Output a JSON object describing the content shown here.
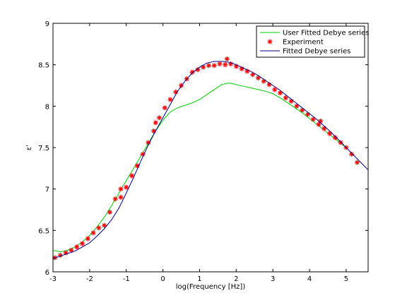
{
  "chart_data": {
    "type": "line",
    "title": "",
    "xlabel": "log(Frequency [Hz])",
    "ylabel": "ε'",
    "xlim": [
      -3,
      5.6
    ],
    "ylim": [
      6,
      9
    ],
    "xticks": [
      -3,
      -2,
      -1,
      0,
      1,
      2,
      3,
      4,
      5
    ],
    "yticks": [
      6,
      6.5,
      7,
      7.5,
      8,
      8.5,
      9
    ],
    "xtick_labels": [
      "-3",
      "-2",
      "-1",
      "0",
      "1",
      "2",
      "3",
      "4",
      "5"
    ],
    "ytick_labels": [
      "6",
      "6.5",
      "7",
      "7.5",
      "8",
      "8.5",
      "9"
    ],
    "grid": false,
    "legend_position": "top-right",
    "series": [
      {
        "name": "User Fitted Debye series",
        "kind": "line",
        "color": "#00cc00",
        "x": [
          -3.0,
          -2.8,
          -2.6,
          -2.4,
          -2.2,
          -2.0,
          -1.8,
          -1.6,
          -1.4,
          -1.2,
          -1.0,
          -0.8,
          -0.6,
          -0.4,
          -0.2,
          0.0,
          0.2,
          0.4,
          0.6,
          0.8,
          1.0,
          1.2,
          1.4,
          1.6,
          1.8,
          2.0,
          2.2,
          2.4,
          2.6,
          2.8,
          3.0,
          3.2,
          3.4,
          3.6,
          3.8,
          4.0,
          4.2,
          4.4,
          4.6,
          4.8,
          5.0
        ],
        "y": [
          6.26,
          6.24,
          6.26,
          6.3,
          6.36,
          6.44,
          6.54,
          6.66,
          6.8,
          6.95,
          7.1,
          7.25,
          7.4,
          7.55,
          7.7,
          7.83,
          7.93,
          7.98,
          8.01,
          8.04,
          8.08,
          8.14,
          8.2,
          8.26,
          8.28,
          8.26,
          8.24,
          8.22,
          8.2,
          8.18,
          8.15,
          8.1,
          8.04,
          7.98,
          7.92,
          7.85,
          7.78,
          7.71,
          7.64,
          7.57,
          7.5
        ]
      },
      {
        "name": "Experiment",
        "kind": "markers",
        "color": "#ff0000",
        "x": [
          -2.95,
          -2.8,
          -2.65,
          -2.5,
          -2.35,
          -2.2,
          -2.05,
          -1.9,
          -1.75,
          -1.6,
          -1.45,
          -1.3,
          -1.15,
          -1.0,
          -0.85,
          -0.7,
          -0.55,
          -0.4,
          -0.25,
          -0.1,
          0.05,
          0.2,
          0.35,
          0.5,
          0.65,
          0.8,
          0.95,
          1.1,
          1.25,
          1.4,
          1.55,
          1.7,
          1.85,
          2.0,
          2.15,
          2.3,
          2.45,
          2.6,
          2.75,
          2.9,
          3.05,
          3.2,
          3.35,
          3.5,
          3.65,
          3.8,
          3.95,
          4.1,
          4.25,
          4.4,
          4.55,
          4.7,
          4.85,
          5.0,
          5.15,
          5.3,
          -0.2,
          -1.15,
          1.75,
          4.3
        ],
        "y": [
          6.17,
          6.2,
          6.23,
          6.26,
          6.3,
          6.34,
          6.4,
          6.47,
          6.53,
          6.56,
          6.72,
          6.88,
          6.9,
          7.02,
          7.16,
          7.28,
          7.42,
          7.56,
          7.7,
          7.86,
          7.98,
          8.08,
          8.17,
          8.25,
          8.33,
          8.41,
          8.44,
          8.47,
          8.49,
          8.49,
          8.51,
          8.5,
          8.51,
          8.48,
          8.45,
          8.42,
          8.38,
          8.34,
          8.3,
          8.26,
          8.2,
          8.16,
          8.1,
          8.06,
          8.0,
          7.95,
          7.9,
          7.84,
          7.78,
          7.73,
          7.67,
          7.62,
          7.56,
          7.5,
          7.42,
          7.32,
          7.8,
          7.0,
          8.57,
          7.82
        ]
      },
      {
        "name": "Fitted Debye series",
        "kind": "line",
        "color": "#000080",
        "x": [
          -3.0,
          -2.8,
          -2.6,
          -2.4,
          -2.2,
          -2.0,
          -1.8,
          -1.6,
          -1.4,
          -1.2,
          -1.0,
          -0.8,
          -0.6,
          -0.4,
          -0.2,
          0.0,
          0.2,
          0.4,
          0.6,
          0.8,
          1.0,
          1.2,
          1.4,
          1.6,
          1.8,
          2.0,
          2.2,
          2.4,
          2.6,
          2.8,
          3.0,
          3.2,
          3.4,
          3.6,
          3.8,
          4.0,
          4.2,
          4.4,
          4.6,
          4.8,
          5.0,
          5.2,
          5.4,
          5.6
        ],
        "y": [
          6.16,
          6.19,
          6.22,
          6.25,
          6.3,
          6.35,
          6.43,
          6.52,
          6.63,
          6.77,
          6.95,
          7.14,
          7.34,
          7.53,
          7.7,
          7.86,
          8.02,
          8.18,
          8.3,
          8.4,
          8.47,
          8.52,
          8.54,
          8.54,
          8.53,
          8.5,
          8.46,
          8.42,
          8.37,
          8.31,
          8.25,
          8.19,
          8.12,
          8.05,
          7.98,
          7.91,
          7.84,
          7.76,
          7.68,
          7.59,
          7.5,
          7.41,
          7.32,
          7.23
        ]
      }
    ]
  }
}
